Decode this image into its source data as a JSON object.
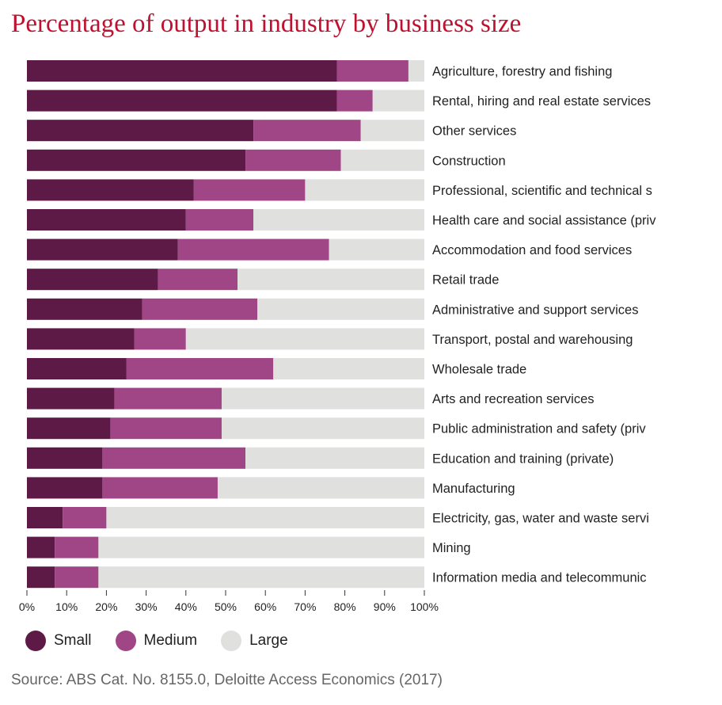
{
  "chart_data": {
    "type": "bar",
    "orientation": "horizontal",
    "stacked": true,
    "title": "Percentage of output in industry by business size",
    "categories": [
      "Agriculture, forestry and fishing",
      "Rental, hiring and real estate services",
      "Other services",
      "Construction",
      "Professional, scientific and technical s",
      "Health care and social assistance (priv",
      "Accommodation and food services",
      "Retail trade",
      "Administrative and support services",
      "Transport, postal and warehousing",
      "Wholesale trade",
      "Arts and recreation services",
      "Public administration and safety (priv",
      "Education and training (private)",
      "Manufacturing",
      "Electricity, gas, water and waste servi",
      "Mining",
      "Information media and telecommunic"
    ],
    "series": [
      {
        "name": "Small",
        "color": "#5e1a46",
        "values": [
          78,
          78,
          57,
          55,
          42,
          40,
          38,
          33,
          29,
          27,
          25,
          22,
          21,
          19,
          19,
          9,
          7,
          7
        ]
      },
      {
        "name": "Medium",
        "color": "#a04585",
        "values": [
          18,
          9,
          27,
          24,
          28,
          17,
          38,
          20,
          29,
          13,
          37,
          27,
          28,
          36,
          29,
          11,
          11,
          11
        ]
      },
      {
        "name": "Large",
        "color": "#e0e0df",
        "values": [
          4,
          13,
          16,
          21,
          30,
          43,
          24,
          47,
          42,
          60,
          38,
          51,
          51,
          45,
          52,
          80,
          82,
          82
        ]
      }
    ],
    "xlim": [
      0,
      100
    ],
    "xticks": [
      "0%",
      "10%",
      "20%",
      "30%",
      "40%",
      "50%",
      "60%",
      "70%",
      "80%",
      "90%",
      "100%"
    ],
    "legend_position": "bottom-left",
    "grid": false
  },
  "source": "Source: ABS Cat. No. 8155.0, Deloitte Access Economics (2017)"
}
